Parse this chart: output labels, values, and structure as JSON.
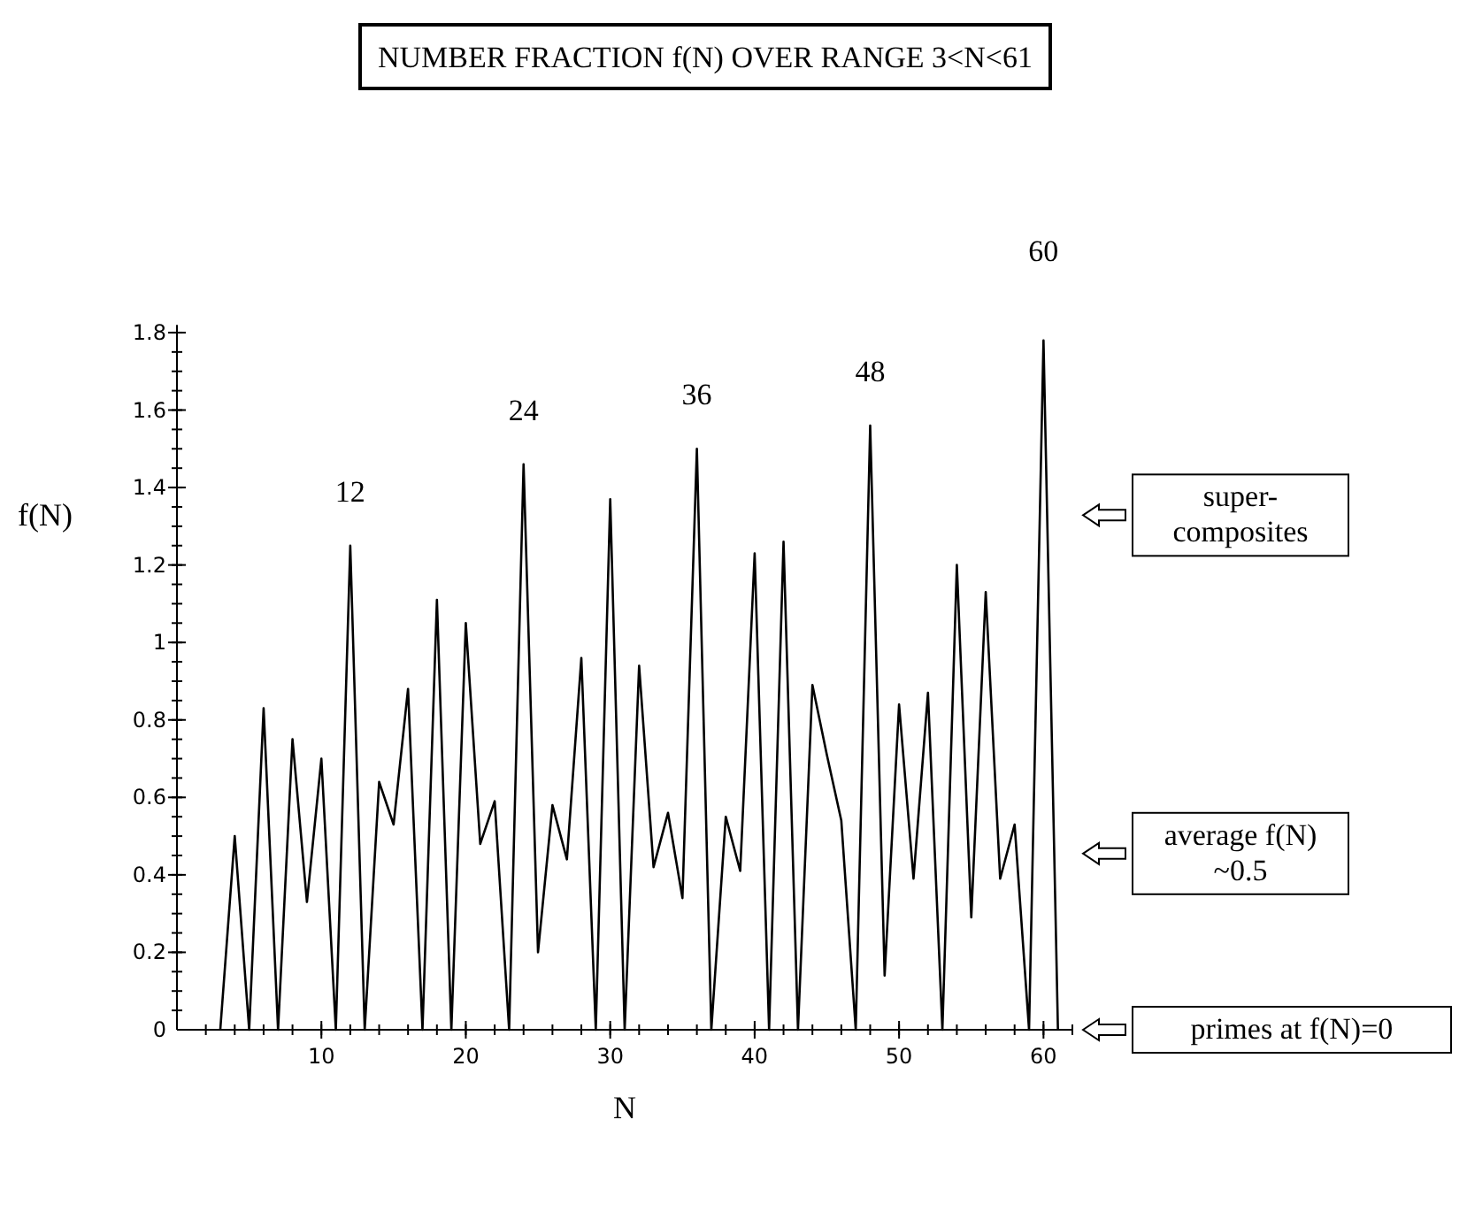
{
  "chart_data": {
    "type": "line",
    "title": "NUMBER FRACTION f(N) OVER RANGE 3<N<61",
    "xlabel": "N",
    "ylabel": "f(N)",
    "x": [
      3,
      4,
      5,
      6,
      7,
      8,
      9,
      10,
      11,
      12,
      13,
      14,
      15,
      16,
      17,
      18,
      19,
      20,
      21,
      22,
      23,
      24,
      25,
      26,
      27,
      28,
      29,
      30,
      31,
      32,
      33,
      34,
      35,
      36,
      37,
      38,
      39,
      40,
      41,
      42,
      43,
      44,
      45,
      46,
      47,
      48,
      49,
      50,
      51,
      52,
      53,
      54,
      55,
      56,
      57,
      58,
      59,
      60,
      61
    ],
    "series": [
      {
        "color": "#000000",
        "values": [
          0,
          0.5,
          0,
          0.83,
          0,
          0.75,
          0.33,
          0.7,
          0,
          1.25,
          0,
          0.64,
          0.53,
          0.88,
          0,
          1.11,
          0,
          1.05,
          0.48,
          0.59,
          0,
          1.46,
          0.2,
          0.58,
          0.44,
          0.96,
          0,
          1.37,
          0,
          0.94,
          0.42,
          0.56,
          0.34,
          1.5,
          0,
          0.55,
          0.41,
          1.23,
          0,
          1.26,
          0,
          0.89,
          0.71,
          0.54,
          0,
          1.56,
          0.14,
          0.84,
          0.39,
          0.87,
          0,
          1.2,
          0.29,
          1.13,
          0.39,
          0.53,
          0,
          1.78,
          0
        ]
      }
    ],
    "xlim": [
      0,
      62
    ],
    "ylim": [
      0,
      1.82
    ],
    "xticks": [
      {
        "value": 0,
        "label": null
      },
      10,
      20,
      30,
      40,
      50,
      60
    ],
    "yticks": [
      0,
      0.2,
      0.4,
      0.6,
      0.8,
      {
        "value": 1,
        "label": "1"
      },
      1.2,
      1.4,
      1.6,
      1.8
    ],
    "grid": false,
    "marker": "none",
    "line_style": "solid",
    "annotations": [
      {
        "text": "12",
        "x": 12,
        "y": 1.25
      },
      {
        "text": "24",
        "x": 24,
        "y": 1.46
      },
      {
        "text": "36",
        "x": 36,
        "y": 1.5
      },
      {
        "text": "48",
        "x": 48,
        "y": 1.56
      },
      {
        "text": "60",
        "x": 60,
        "y": 1.78
      },
      "super-\ncomposites",
      "average f(N)\n~0.5",
      "primes at f(N)=0"
    ]
  }
}
